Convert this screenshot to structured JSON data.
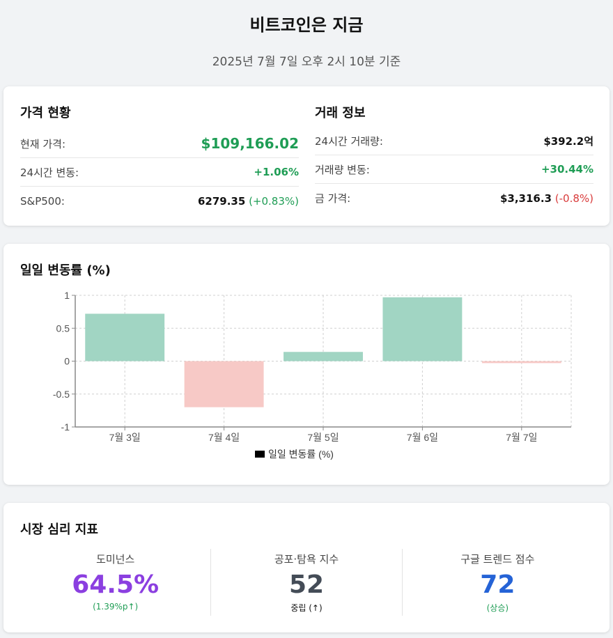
{
  "header": {
    "title": "비트코인은 지금",
    "subtitle": "2025년 7월 7일 오후 2시 10분 기준"
  },
  "price": {
    "title": "가격 현황",
    "current_label": "현재 가격:",
    "current_value": "$109,166.02",
    "change_label": "24시간 변동:",
    "change_value": "+1.06%",
    "sp500_label": "S&P500:",
    "sp500_value": "6279.35",
    "sp500_change": "(+0.83%)"
  },
  "trade": {
    "title": "거래 정보",
    "volume_label": "24시간 거래량:",
    "volume_value": "$392.2억",
    "volume_change_label": "거래량 변동:",
    "volume_change_value": "+30.44%",
    "gold_label": "금 가격:",
    "gold_value": "$3,316.3",
    "gold_change": "(-0.8%)"
  },
  "chart_section": {
    "title": "일일 변동률 (%)"
  },
  "chart_data": {
    "type": "bar",
    "categories": [
      "7월 3일",
      "7월 4일",
      "7월 5일",
      "7월 6일",
      "7월 7일"
    ],
    "series": [
      {
        "name": "일일 변동률 (%)",
        "values": [
          0.72,
          -0.7,
          0.14,
          0.97,
          -0.03
        ]
      }
    ],
    "ylim": [
      -1,
      1
    ],
    "yticks": [
      "1",
      "0.5",
      "0",
      "-0.5",
      "-1"
    ],
    "ytick_values": [
      1,
      0.5,
      0,
      -0.5,
      -1
    ],
    "grid": true,
    "legend": "bottom",
    "colors": {
      "positive": "#a1d5c3",
      "negative": "#f7c9c6",
      "legend_swatch": "#000000"
    }
  },
  "sentiment": {
    "title": "시장 심리 지표",
    "items": [
      {
        "label": "도미넌스",
        "value": "64.5%",
        "note": "(1.39%p↑)",
        "color": "#8b3fe0",
        "note_color": "#1f9d55"
      },
      {
        "label": "공포·탐욕 지수",
        "value": "52",
        "note": "중립 (↑)",
        "color": "#444c57",
        "note_color": "#111111"
      },
      {
        "label": "구글 트렌드 점수",
        "value": "72",
        "note": "(상승)",
        "color": "#2563d6",
        "note_color": "#1f9d55"
      }
    ]
  }
}
